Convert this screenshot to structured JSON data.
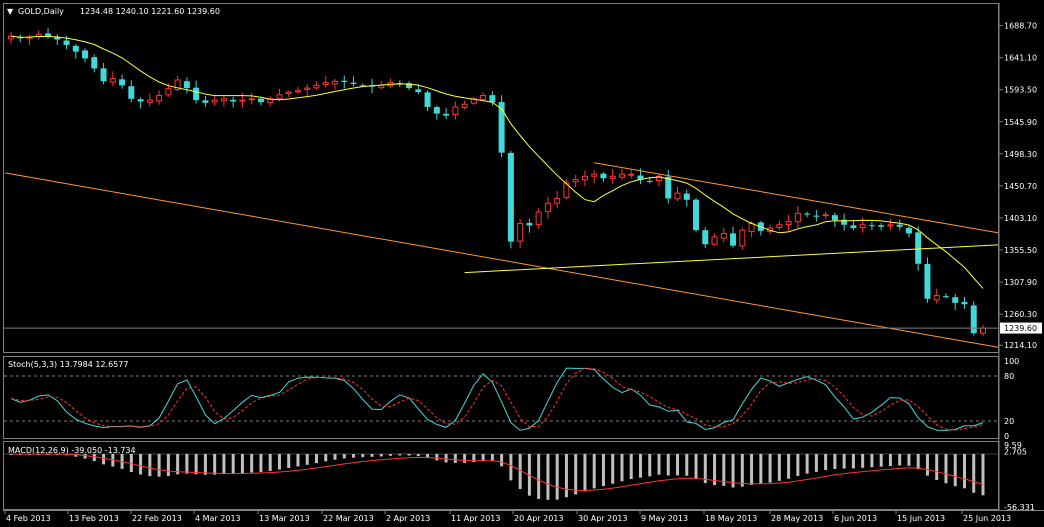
{
  "header": {
    "symbol": "GOLD,Daily",
    "ohlc": "1234.48 1240.10 1221.60 1239.60"
  },
  "colors": {
    "background": "#000000",
    "bull": "#ff3333",
    "bear": "#40d8d8",
    "ma": "#ffff33",
    "trendline": "#ff9933",
    "support": "#ffff33",
    "grid": "#808080",
    "stoch_main": "#40d8d8",
    "stoch_signal": "#ff3333",
    "macd_hist": "#c0c0c0",
    "macd_signal": "#ff3333"
  },
  "chart_data": [
    {
      "type": "candlestick",
      "title": "GOLD,Daily",
      "y_ticks": [
        "1688.70",
        "1641.10",
        "1593.50",
        "1545.90",
        "1498.30",
        "1450.70",
        "1403.10",
        "1355.50",
        "1307.90",
        "1260.30",
        "1214.10"
      ],
      "current_price_label": "1239.60",
      "current_price": 1239.6,
      "ylim": [
        1210,
        1700
      ],
      "x_ticks": [
        "4 Feb 2013",
        "13 Feb 2013",
        "22 Feb 2013",
        "4 Mar 2013",
        "13 Mar 2013",
        "22 Mar 2013",
        "2 Apr 2013",
        "11 Apr 2013",
        "20 Apr 2013",
        "30 Apr 2013",
        "9 May 2013",
        "18 May 2013",
        "28 May 2013",
        "6 Jun 2013",
        "15 Jun 2013",
        "25 Jun 2013"
      ],
      "close_series": [
        1673,
        1670,
        1672,
        1676,
        1672,
        1668,
        1660,
        1650,
        1640,
        1625,
        1606,
        1610,
        1600,
        1580,
        1576,
        1578,
        1585,
        1595,
        1608,
        1596,
        1578,
        1574,
        1578,
        1580,
        1576,
        1578,
        1580,
        1575,
        1580,
        1586,
        1590,
        1592,
        1596,
        1600,
        1604,
        1606,
        1605,
        1602,
        1600,
        1598,
        1600,
        1604,
        1602,
        1596,
        1590,
        1568,
        1558,
        1555,
        1568,
        1572,
        1580,
        1585,
        1575,
        1500,
        1368,
        1395,
        1392,
        1412,
        1425,
        1432,
        1455,
        1460,
        1465,
        1468,
        1462,
        1465,
        1468,
        1468,
        1460,
        1458,
        1465,
        1432,
        1440,
        1430,
        1385,
        1364,
        1375,
        1380,
        1362,
        1385,
        1395,
        1384,
        1388,
        1393,
        1398,
        1410,
        1408,
        1405,
        1408,
        1400,
        1393,
        1388,
        1393,
        1392,
        1390,
        1393,
        1390,
        1380,
        1335,
        1283,
        1288,
        1286,
        1277,
        1275,
        1232,
        1239.6
      ],
      "series": [
        {
          "name": "Stoch(5,3,3) 13.7984 12.6577",
          "label": "Stoch(5,3,3)",
          "values_label": "13.7984 12.6577"
        },
        {
          "name": "MACD(12,26,9) -39.050 -13.734",
          "label": "MACD(12,26,9)",
          "values_label": "-39.050 -13.734"
        }
      ],
      "trendlines": [
        {
          "name": "upper-channel",
          "from": [
            "30 Apr 2013",
            1485
          ],
          "to": [
            "25 Jun 2013",
            1385
          ]
        },
        {
          "name": "lower-channel",
          "from": [
            "4 Feb 2013",
            1470
          ],
          "to": [
            "25 Jun 2013",
            1215
          ]
        },
        {
          "name": "support-line",
          "from": [
            "11 Apr 2013",
            1322
          ],
          "to": [
            "25 Jun 2013",
            1362
          ]
        }
      ]
    },
    {
      "type": "line",
      "title": "Stoch(5,3,3)",
      "values_label": "13.7984 12.6577",
      "y_ticks": [
        "100",
        "80",
        "20",
        "0"
      ],
      "levels": [
        80,
        20
      ],
      "ylim": [
        0,
        100
      ]
    },
    {
      "type": "bar",
      "title": "MACD(12,26,9)",
      "values_label": "-39.050 -13.734",
      "y_ticks": [
        "9.59",
        "2.705",
        "-56.331"
      ],
      "ylim": [
        -56.331,
        9.59
      ]
    }
  ]
}
